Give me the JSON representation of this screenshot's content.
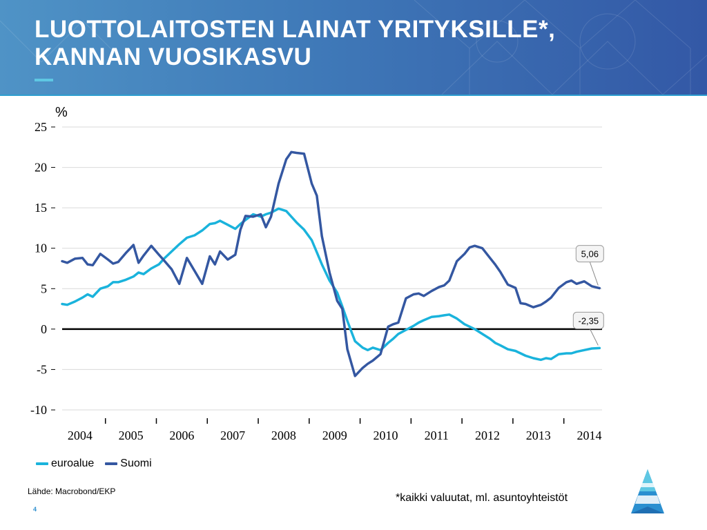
{
  "header": {
    "title_line1": "LUOTTOLAITOSTEN LAINAT YRITYKSILLE*,",
    "title_line2": "KANNAN VUOSIKASVU"
  },
  "colors": {
    "euroalue": "#1ab3dc",
    "suomi": "#3457a1",
    "zero_line": "#000000",
    "grid": "#d9d9d9",
    "accent": "#5ec7e3"
  },
  "chart_data": {
    "type": "line",
    "ylabel": "%",
    "ylim": [
      -10,
      25
    ],
    "yticks": [
      25,
      20,
      15,
      10,
      5,
      0,
      -5,
      -10
    ],
    "ytick_labels": [
      "25",
      "20",
      "15",
      "10",
      "5",
      "0",
      "-5",
      "-10"
    ],
    "xlim": [
      2004.0,
      2014.6
    ],
    "xticks": [
      2004,
      2005,
      2006,
      2007,
      2008,
      2009,
      2010,
      2011,
      2012,
      2013,
      2014
    ],
    "xtick_labels": [
      "2004",
      "2005",
      "2006",
      "2007",
      "2008",
      "2009",
      "2010",
      "2011",
      "2012",
      "2013",
      "2014"
    ],
    "grid": true,
    "legend_position": "bottom-left",
    "series": [
      {
        "name": "euroalue",
        "color": "#1ab3dc",
        "x": [
          2004.0,
          2004.1,
          2004.25,
          2004.4,
          2004.5,
          2004.6,
          2004.75,
          2004.9,
          2005.0,
          2005.1,
          2005.25,
          2005.4,
          2005.5,
          2005.6,
          2005.75,
          2005.9,
          2006.0,
          2006.15,
          2006.3,
          2006.45,
          2006.6,
          2006.75,
          2006.9,
          2007.0,
          2007.1,
          2007.25,
          2007.4,
          2007.5,
          2007.6,
          2007.75,
          2007.9,
          2008.0,
          2008.1,
          2008.25,
          2008.4,
          2008.5,
          2008.6,
          2008.75,
          2008.9,
          2009.0,
          2009.1,
          2009.25,
          2009.4,
          2009.5,
          2009.6,
          2009.75,
          2009.9,
          2010.0,
          2010.1,
          2010.25,
          2010.4,
          2010.5,
          2010.6,
          2010.75,
          2010.9,
          2011.0,
          2011.1,
          2011.25,
          2011.4,
          2011.5,
          2011.6,
          2011.75,
          2011.9,
          2012.0,
          2012.1,
          2012.25,
          2012.4,
          2012.5,
          2012.6,
          2012.75,
          2012.9,
          2013.0,
          2013.1,
          2013.25,
          2013.4,
          2013.5,
          2013.6,
          2013.75,
          2013.9,
          2014.0,
          2014.1,
          2014.25,
          2014.4,
          2014.55
        ],
        "values": [
          3.1,
          3.0,
          3.4,
          3.9,
          4.3,
          4.0,
          5.0,
          5.3,
          5.8,
          5.8,
          6.1,
          6.5,
          7.0,
          6.8,
          7.5,
          8.0,
          8.7,
          9.6,
          10.5,
          11.3,
          11.6,
          12.2,
          13.0,
          13.1,
          13.4,
          12.9,
          12.4,
          13.0,
          13.5,
          14.2,
          13.9,
          14.2,
          14.4,
          14.9,
          14.6,
          13.9,
          13.2,
          12.3,
          11.0,
          9.5,
          8.0,
          6.0,
          4.5,
          2.8,
          1.0,
          -1.5,
          -2.3,
          -2.6,
          -2.3,
          -2.6,
          -1.7,
          -1.2,
          -0.6,
          -0.1,
          0.4,
          0.8,
          1.1,
          1.5,
          1.6,
          1.7,
          1.8,
          1.3,
          0.6,
          0.3,
          0.0,
          -0.6,
          -1.2,
          -1.7,
          -2.0,
          -2.5,
          -2.7,
          -3.0,
          -3.3,
          -3.6,
          -3.8,
          -3.6,
          -3.7,
          -3.1,
          -3.0,
          -3.0,
          -2.8,
          -2.6,
          -2.4,
          -2.35
        ]
      },
      {
        "name": "Suomi",
        "color": "#3457a1",
        "x": [
          2004.0,
          2004.1,
          2004.25,
          2004.4,
          2004.5,
          2004.6,
          2004.75,
          2004.9,
          2005.0,
          2005.1,
          2005.25,
          2005.4,
          2005.5,
          2005.6,
          2005.75,
          2005.9,
          2006.0,
          2006.15,
          2006.3,
          2006.45,
          2006.6,
          2006.75,
          2006.9,
          2007.0,
          2007.1,
          2007.25,
          2007.4,
          2007.5,
          2007.6,
          2007.75,
          2007.9,
          2008.0,
          2008.1,
          2008.25,
          2008.4,
          2008.5,
          2008.6,
          2008.75,
          2008.9,
          2009.0,
          2009.1,
          2009.25,
          2009.4,
          2009.5,
          2009.6,
          2009.75,
          2009.9,
          2010.0,
          2010.1,
          2010.25,
          2010.4,
          2010.5,
          2010.6,
          2010.75,
          2010.9,
          2011.0,
          2011.1,
          2011.25,
          2011.4,
          2011.5,
          2011.6,
          2011.75,
          2011.9,
          2012.0,
          2012.1,
          2012.25,
          2012.4,
          2012.5,
          2012.6,
          2012.75,
          2012.9,
          2013.0,
          2013.1,
          2013.25,
          2013.4,
          2013.5,
          2013.6,
          2013.75,
          2013.9,
          2014.0,
          2014.1,
          2014.25,
          2014.4,
          2014.55
        ],
        "values": [
          8.4,
          8.2,
          8.7,
          8.8,
          8.0,
          7.9,
          9.3,
          8.6,
          8.1,
          8.3,
          9.4,
          10.4,
          8.2,
          9.1,
          10.3,
          9.2,
          8.5,
          7.4,
          5.6,
          8.8,
          7.2,
          5.6,
          9.0,
          8.0,
          9.6,
          8.6,
          9.2,
          12.3,
          14.0,
          13.9,
          14.2,
          12.6,
          13.9,
          18.0,
          21.0,
          21.9,
          21.8,
          21.7,
          18.0,
          16.5,
          11.5,
          7.0,
          3.5,
          2.5,
          -2.5,
          -5.8,
          -4.8,
          -4.3,
          -3.9,
          -3.1,
          0.3,
          0.6,
          0.8,
          3.8,
          4.3,
          4.4,
          4.1,
          4.7,
          5.2,
          5.4,
          6.0,
          8.4,
          9.3,
          10.1,
          10.3,
          10.0,
          8.8,
          8.0,
          7.1,
          5.5,
          5.1,
          3.2,
          3.1,
          2.7,
          3.0,
          3.4,
          3.9,
          5.1,
          5.8,
          6.0,
          5.6,
          5.9,
          5.3,
          5.06
        ]
      }
    ],
    "annotations": [
      {
        "text": "5,06",
        "series": "Suomi",
        "x": 2014.55,
        "y": 5.06
      },
      {
        "text": "-2,35",
        "series": "euroalue",
        "x": 2014.55,
        "y": -2.35
      }
    ]
  },
  "legend": {
    "items": [
      {
        "label": "euroalue",
        "color": "#1ab3dc"
      },
      {
        "label": "Suomi",
        "color": "#3457a1"
      }
    ]
  },
  "source_text": "Lähde: Macrobond/EKP",
  "footnote_text": "*kaikki valuutat, ml. asuntoyhteistöt",
  "page_number": "4"
}
